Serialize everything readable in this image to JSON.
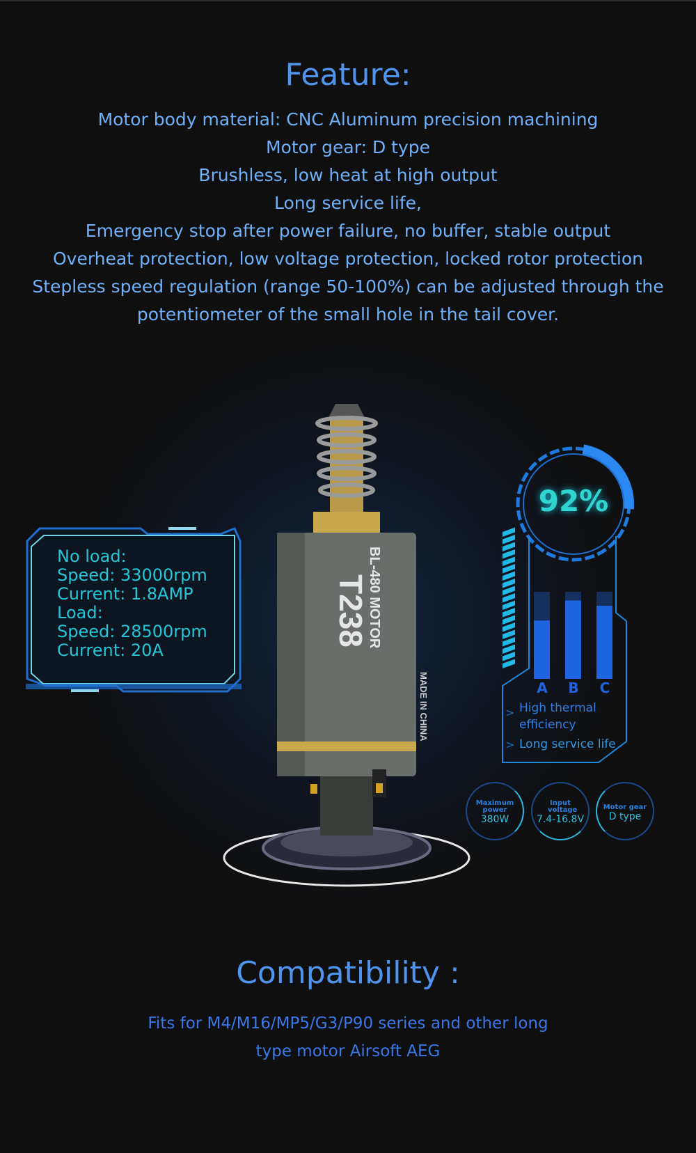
{
  "feature": {
    "title": "Feature:",
    "lines": [
      "Motor body material: CNC Aluminum precision machining",
      "Motor gear: D type",
      "Brushless, low heat at high output",
      "Long service life,",
      "Emergency stop after power failure, no buffer, stable output",
      "Overheat protection, low voltage protection, locked rotor protection",
      "Stepless speed regulation (range 50-100%) can be adjusted through the",
      "potentiometer of the small hole in the tail cover."
    ]
  },
  "specs_panel": {
    "lines": [
      "No load:",
      "Speed: 33000rpm",
      "Current: 1.8AMP",
      "Load:",
      "Speed: 28500rpm",
      "Current: 20A"
    ]
  },
  "motor": {
    "model": "BL-480 MOTOR",
    "brand": "T238",
    "origin": "MADE IN CHINA"
  },
  "efficiency": {
    "value": "92%",
    "percent": 92,
    "bars": [
      {
        "label": "A",
        "level": 0.67
      },
      {
        "label": "B",
        "level": 0.9
      },
      {
        "label": "C",
        "level": 0.84
      }
    ],
    "items": [
      "High thermal efficiency",
      "Long service life"
    ]
  },
  "badges": [
    {
      "label": "Maximum power",
      "value": "380W"
    },
    {
      "label": "Input voltage",
      "value": "7.4-16.8V"
    },
    {
      "label": "Motor gear",
      "value": "D type"
    }
  ],
  "compatibility": {
    "title": "Compatibility :",
    "lines": [
      "Fits for M4/M16/MP5/G3/P90 series and other long",
      "type motor Airsoft AEG"
    ]
  },
  "colors": {
    "background": "#0f0f10",
    "title": "#4f95f0",
    "text": "#6fb0f8",
    "cyan": "#25c6d8",
    "bar": "#1e63e0"
  }
}
